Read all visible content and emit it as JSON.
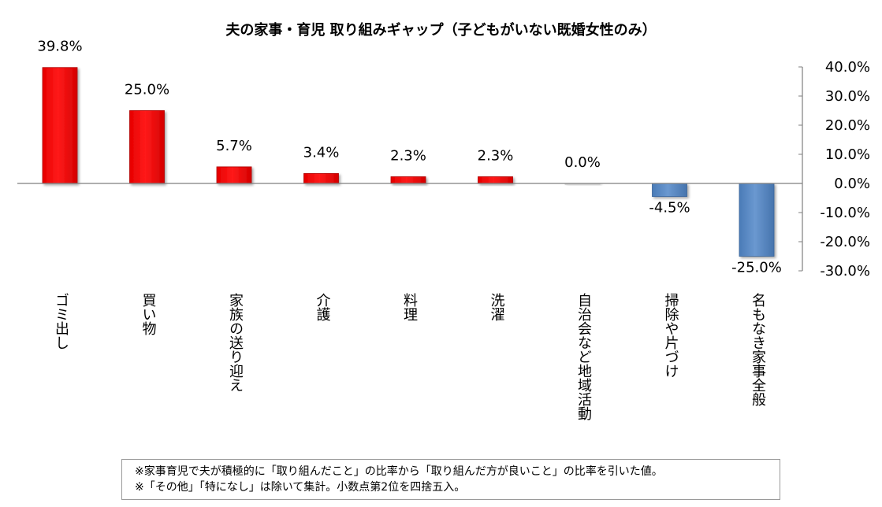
{
  "chart_data": {
    "type": "bar",
    "title": "夫の家事・育児 取り組みギャップ（子どもがいない既婚女性のみ）",
    "categories": [
      "ゴミ出し",
      "買い物",
      "家族の送り迎え",
      "介護",
      "料理",
      "洗濯",
      "自治会など地域活動",
      "掃除や片づけ",
      "名もなき家事全般"
    ],
    "values": [
      39.8,
      25.0,
      5.7,
      3.4,
      2.3,
      2.3,
      0.0,
      -4.5,
      -25.0
    ],
    "value_labels": [
      "39.8%",
      "25.0%",
      "5.7%",
      "3.4%",
      "2.3%",
      "2.3%",
      "0.0%",
      "-4.5%",
      "-25.0%"
    ],
    "ylim": [
      -30,
      40
    ],
    "yticks": [
      40,
      30,
      20,
      10,
      0,
      -10,
      -20,
      -30
    ],
    "ytick_labels": [
      "40.0%",
      "30.0%",
      "20.0%",
      "10.0%",
      "0.0%",
      "-10.0%",
      "-20.0%",
      "-30.0%"
    ],
    "y_axis_side": "right",
    "colors": {
      "positive": "#ff0000",
      "negative": "#4f81bd",
      "zero": "#d9d9d9"
    }
  },
  "notes": [
    "※家事育児で夫が積極的に「取り組んだこと」の比率から「取り組んだ方が良いこと」の比率を引いた値。",
    "※「その他」「特になし」は除いて集計。小数点第2位を四捨五入。"
  ]
}
